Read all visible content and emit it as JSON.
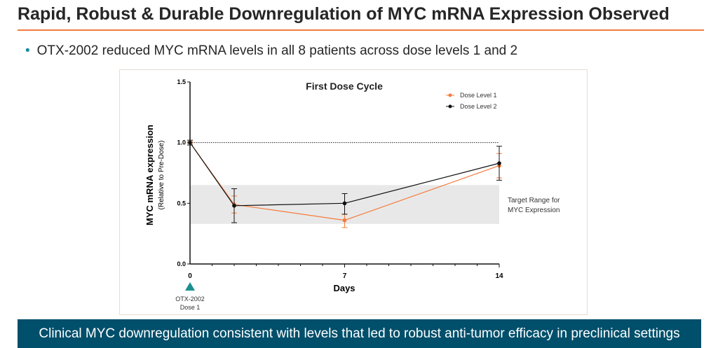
{
  "title": "Rapid, Robust & Durable Downregulation of MYC mRNA Expression Observed",
  "bullet": "OTX-2002 reduced MYC mRNA levels in all 8 patients across dose levels 1 and 2",
  "banner": "Clinical MYC downregulation consistent with levels that led to robust anti-tumor efficacy in preclinical settings",
  "chart_data": {
    "type": "line",
    "title": "First Dose Cycle",
    "xlabel": "Days",
    "ylabel": "MYC mRNA expression",
    "ylabel_sub": "(Relative to Pre-Dose)",
    "xlim": [
      0,
      14
    ],
    "ylim": [
      0,
      1.5
    ],
    "xticks": [
      "0",
      "7",
      "14"
    ],
    "yticks": [
      "0.0",
      "0.5",
      "1.0",
      "1.5"
    ],
    "reference_line": 1.0,
    "target_band": {
      "range": [
        0.33,
        0.65
      ],
      "label_line1": "Target Range for",
      "label_line2": "MYC Expression"
    },
    "annotation": {
      "label_line1": "OTX-2002",
      "label_line2": "Dose 1",
      "x": 0,
      "color": "#1a9090"
    },
    "legend_position": "top-right",
    "series": [
      {
        "name": "Dose Level 1",
        "color": "#f47c3c",
        "x": [
          0,
          2,
          7,
          14
        ],
        "values": [
          1.0,
          0.49,
          0.36,
          0.81
        ],
        "err_low": [
          0.99,
          0.42,
          0.3,
          0.71
        ],
        "err_high": [
          1.01,
          0.56,
          0.41,
          0.91
        ]
      },
      {
        "name": "Dose Level 2",
        "color": "#111111",
        "x": [
          0,
          2,
          7,
          14
        ],
        "values": [
          1.0,
          0.48,
          0.5,
          0.83
        ],
        "err_low": [
          0.98,
          0.34,
          0.41,
          0.69
        ],
        "err_high": [
          1.02,
          0.62,
          0.58,
          0.97
        ]
      }
    ]
  }
}
